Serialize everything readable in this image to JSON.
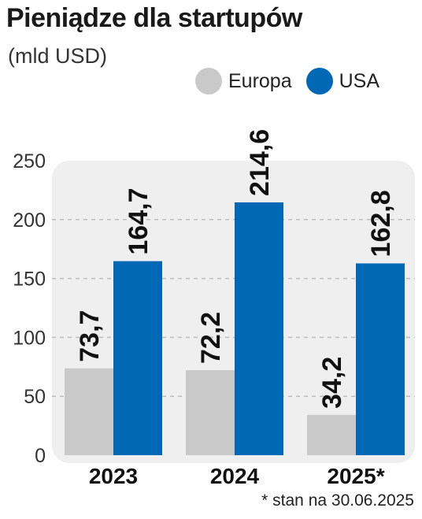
{
  "chart_data": {
    "type": "bar",
    "title": "Pieniądze dla startupów",
    "subtitle": "(mld USD)",
    "categories": [
      "2023",
      "2024",
      "2025*"
    ],
    "series": [
      {
        "name": "Europa",
        "values": [
          73.7,
          72.2,
          34.2
        ],
        "labels": [
          "73,7",
          "72,2",
          "34,2"
        ],
        "color": "#c9c9c9"
      },
      {
        "name": "USA",
        "values": [
          164.7,
          214.6,
          162.8
        ],
        "labels": [
          "164,7",
          "214,6",
          "162,8"
        ],
        "color": "#0068b4"
      }
    ],
    "yticks": [
      "0",
      "50",
      "100",
      "150",
      "200",
      "250"
    ],
    "ylim": [
      0,
      250
    ],
    "grid": true,
    "legend": "top-right",
    "footnote": "* stan na 30.06.2025"
  }
}
